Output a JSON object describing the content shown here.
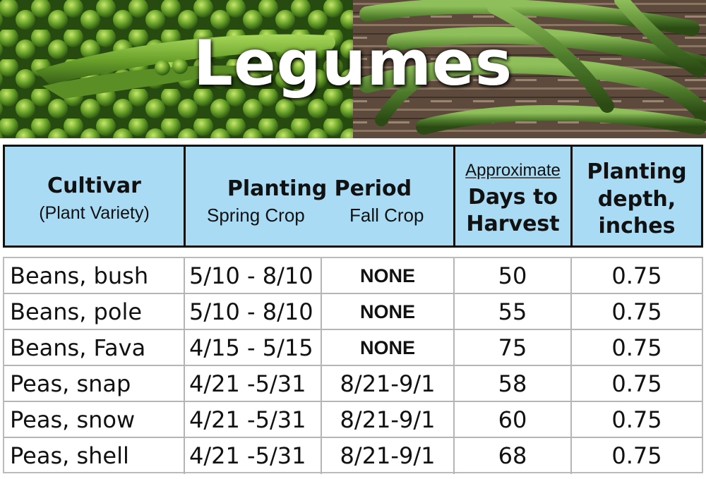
{
  "title": "Legumes",
  "header": {
    "cultivar": "Cultivar",
    "cultivar_sub": "(Plant Variety)",
    "planting_period": "Planting Period",
    "spring_crop": "Spring Crop",
    "fall_crop": "Fall Crop",
    "days_approx": "Approximate",
    "days_line2": "Days to",
    "days_line3": "Harvest",
    "depth_line1": "Planting",
    "depth_line2": "depth,",
    "depth_line3": "inches"
  },
  "rows": [
    {
      "name": "Beans, bush",
      "spring": "5/10 - 8/10",
      "fall": "NONE",
      "days": "50",
      "depth": "0.75"
    },
    {
      "name": "Beans, pole",
      "spring": "5/10 - 8/10",
      "fall": "NONE",
      "days": "55",
      "depth": "0.75"
    },
    {
      "name": "Beans, Fava",
      "spring": "4/15 - 5/15",
      "fall": "NONE",
      "days": "75",
      "depth": "0.75"
    },
    {
      "name": "Peas, snap",
      "spring": "4/21 -5/31",
      "fall": "8/21-9/1",
      "days": "58",
      "depth": "0.75"
    },
    {
      "name": "Peas, snow",
      "spring": "4/21 -5/31",
      "fall": "8/21-9/1",
      "days": "60",
      "depth": "0.75"
    },
    {
      "name": "Peas, shell",
      "spring": "4/21 -5/31",
      "fall": "8/21-9/1",
      "days": "68",
      "depth": "0.75"
    }
  ],
  "colors": {
    "header_bg": "#a9dcf4",
    "pea_green": "#6fa42a",
    "bean_green": "#4f7d2c"
  }
}
